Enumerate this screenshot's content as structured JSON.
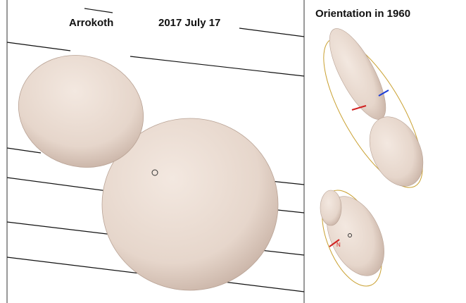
{
  "left_panel": {
    "title": "Arrokoth",
    "date": "2017 July 17"
  },
  "right_panel": {
    "title": "Orientation in 1960",
    "pole_label": "N"
  }
}
